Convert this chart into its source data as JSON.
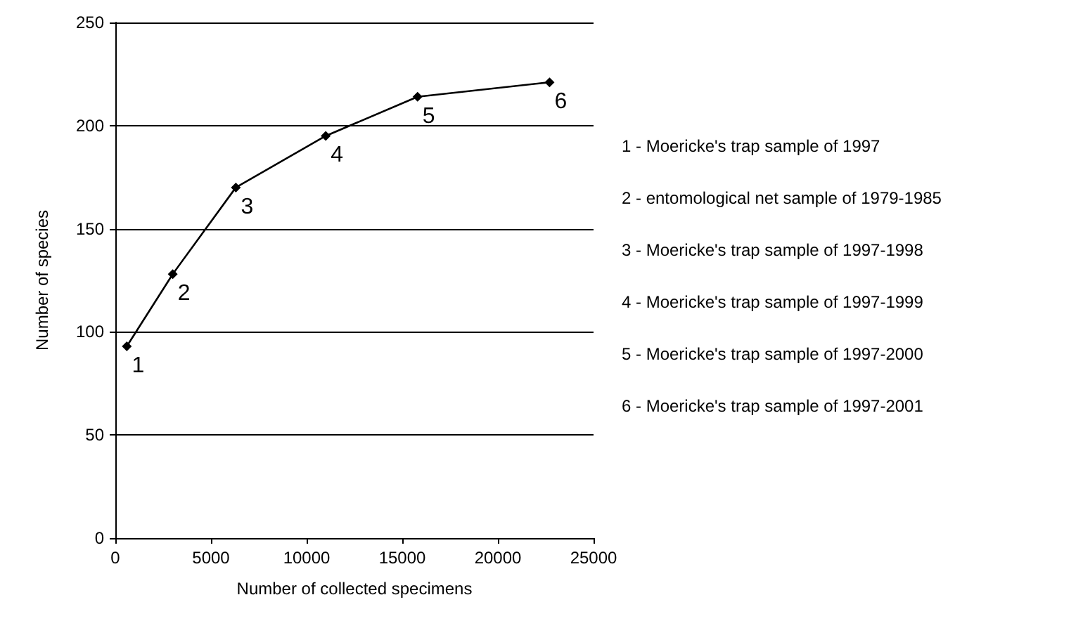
{
  "chart_data": {
    "type": "line",
    "xlabel": "Number of collected specimens",
    "ylabel": "Number of species",
    "x": [
      600,
      3000,
      6300,
      11000,
      15800,
      22700
    ],
    "series": [
      {
        "color": "#000000",
        "values": [
          93,
          128,
          170,
          195,
          214,
          221
        ]
      }
    ],
    "xlim": [
      0,
      25000
    ],
    "xticks": [
      0,
      5000,
      10000,
      15000,
      20000,
      25000
    ],
    "ylim": [
      0,
      250
    ],
    "yticks": [
      0,
      50,
      100,
      150,
      200,
      250
    ],
    "grid": "y",
    "marker": "diamond",
    "line_style": "solid",
    "annotations": [
      {
        "text": "1",
        "x": 600,
        "y": 93
      },
      {
        "text": "2",
        "x": 3000,
        "y": 128
      },
      {
        "text": "3",
        "x": 6300,
        "y": 170
      },
      {
        "text": "4",
        "x": 11000,
        "y": 195
      },
      {
        "text": "5",
        "x": 15800,
        "y": 214
      },
      {
        "text": "6",
        "x": 22700,
        "y": 221
      },
      "1 - Moericke's trap sample of 1997",
      "2 - entomological net sample of 1979-1985",
      "3 - Moericke's trap sample of 1997-1998",
      "4 - Moericke's trap sample of 1997-1999",
      "5 - Moericke's trap sample of 1997-2000",
      "6 - Moericke's trap sample of 1997-2001"
    ]
  }
}
